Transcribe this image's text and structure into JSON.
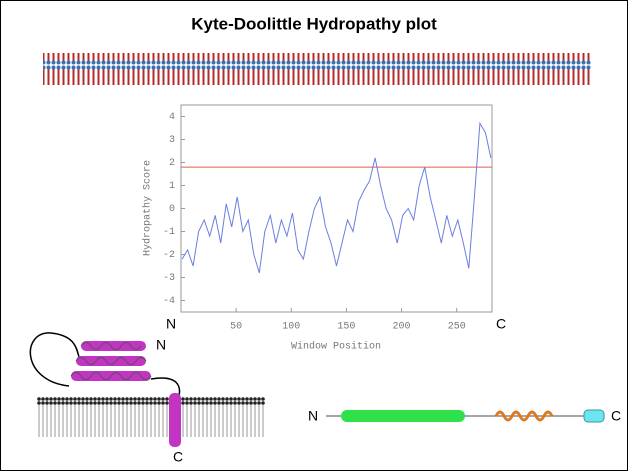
{
  "chart_data": {
    "type": "line",
    "title": "Kyte-Doolittle Hydropathy plot",
    "x_label": "Window Position",
    "y_label": "Hydropathy Score",
    "x": [
      1,
      6,
      11,
      16,
      21,
      26,
      31,
      36,
      41,
      46,
      51,
      56,
      61,
      66,
      71,
      76,
      81,
      86,
      91,
      96,
      101,
      106,
      111,
      116,
      121,
      126,
      131,
      136,
      141,
      146,
      151,
      156,
      161,
      166,
      171,
      176,
      181,
      186,
      191,
      196,
      201,
      206,
      211,
      216,
      221,
      226,
      231,
      236,
      241,
      246,
      251,
      256,
      261,
      266,
      271,
      276,
      281
    ],
    "series": [
      {
        "color": "#6a7fe0",
        "values": [
          -2.2,
          -1.8,
          -2.5,
          -1.0,
          -0.5,
          -1.2,
          -0.3,
          -1.5,
          0.2,
          -0.8,
          0.5,
          -1.0,
          -0.5,
          -2.0,
          -2.8,
          -1.0,
          -0.3,
          -1.5,
          -0.5,
          -1.2,
          -0.2,
          -1.8,
          -2.2,
          -1.0,
          0.0,
          0.5,
          -0.8,
          -1.5,
          -2.5,
          -1.5,
          -0.5,
          -1.0,
          0.3,
          0.8,
          1.2,
          2.2,
          1.0,
          0.0,
          -0.5,
          -1.5,
          -0.3,
          0.0,
          -0.5,
          1.0,
          1.8,
          0.5,
          -0.5,
          -1.5,
          -0.3,
          -1.2,
          -0.5,
          -1.5,
          -2.6,
          0.5,
          3.7,
          3.3,
          2.2
        ]
      }
    ],
    "threshold": 1.8,
    "threshold_color": "#e0604a",
    "xlim": [
      0,
      282
    ],
    "xticks": [
      50,
      100,
      150,
      200,
      250
    ],
    "ylim": [
      -4.5,
      4.5
    ],
    "yticks": [
      -4,
      -3,
      -2,
      -1,
      0,
      1,
      2,
      3,
      4
    ],
    "ends": {
      "start": "N",
      "end": "C"
    }
  },
  "diagram": {
    "helix_n": "N",
    "helix_c": "C",
    "domain_n": "N",
    "domain_c": "C"
  }
}
